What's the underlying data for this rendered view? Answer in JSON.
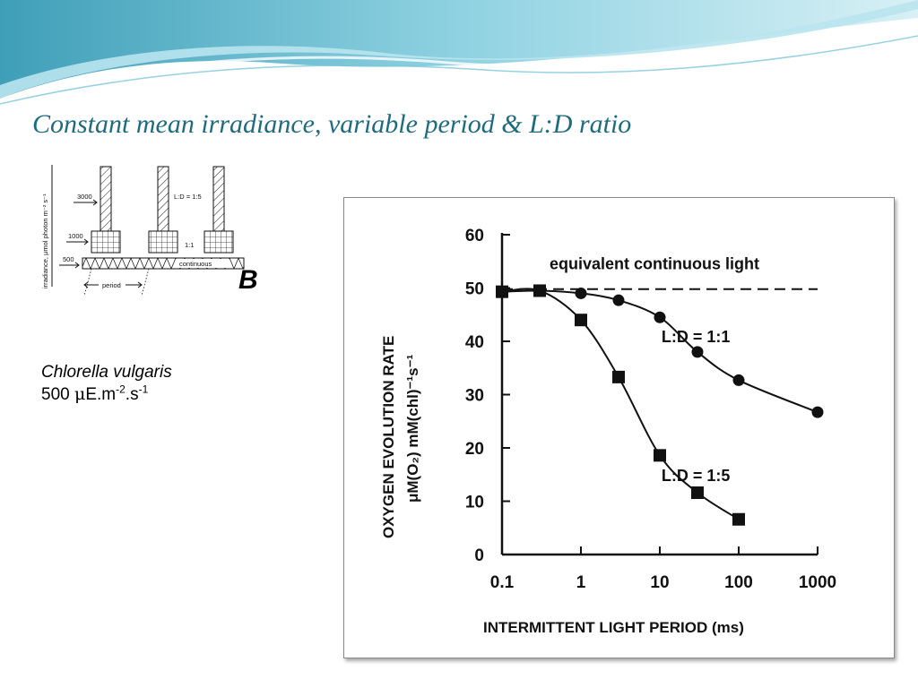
{
  "slide": {
    "title": "Constant mean irradiance, variable period & L:D ratio",
    "panel_letter": "B",
    "species": "Chlorella vulgaris",
    "irradiance_value": "500",
    "irradiance_unit_mu": "μ",
    "irradiance_unit_a": "E.m",
    "irradiance_unit_exp1": "-2",
    "irradiance_unit_b": ".s",
    "irradiance_unit_exp2": "-1",
    "colors": {
      "title": "#1f6b7e",
      "wave_light": "#b9e4ee",
      "wave_mid": "#7cc7da",
      "wave_dark": "#3f9fb8"
    }
  },
  "schematic": {
    "ylabel": "irradiance, μmol photon  m⁻² s⁻¹",
    "level_3000": "3000",
    "level_1000": "1000",
    "level_500": "500",
    "label_ld15": "L:D = 1:5",
    "label_ld11": "1:1",
    "label_continuous": "continuous",
    "label_period": "period"
  },
  "chart_data": {
    "type": "line",
    "xscale": "log",
    "xlabel": "INTERMITTENT LIGHT PERIOD (ms)",
    "ylabel_line1": "OXYGEN EVOLUTION RATE",
    "ylabel_line2": "μM(O₂) mM(chl)⁻¹s⁻¹",
    "xlim": [
      0.1,
      1000
    ],
    "ylim": [
      0,
      60
    ],
    "x_ticks": [
      0.1,
      1,
      10,
      100,
      1000
    ],
    "x_tick_labels": [
      "0.1",
      "1",
      "10",
      "100",
      "1000"
    ],
    "y_ticks": [
      0,
      10,
      20,
      30,
      40,
      50,
      60
    ],
    "y_tick_labels": [
      "0",
      "10",
      "20",
      "30",
      "40",
      "50",
      "60"
    ],
    "reference_line": {
      "label": "equivalent continuous light",
      "y": 49.8
    },
    "series": [
      {
        "name": "L:D = 1:1",
        "marker": "circle",
        "x": [
          0.1,
          0.3,
          1,
          3,
          10,
          30,
          100,
          1000
        ],
        "y": [
          49.3,
          49.5,
          49,
          47.7,
          44.5,
          38,
          32.7,
          26.7
        ]
      },
      {
        "name": "L:D = 1:5",
        "marker": "square",
        "x": [
          0.1,
          0.3,
          1,
          3,
          10,
          30,
          100
        ],
        "y": [
          49.3,
          49.5,
          44,
          33.3,
          18.6,
          11.6,
          6.6
        ]
      }
    ]
  }
}
